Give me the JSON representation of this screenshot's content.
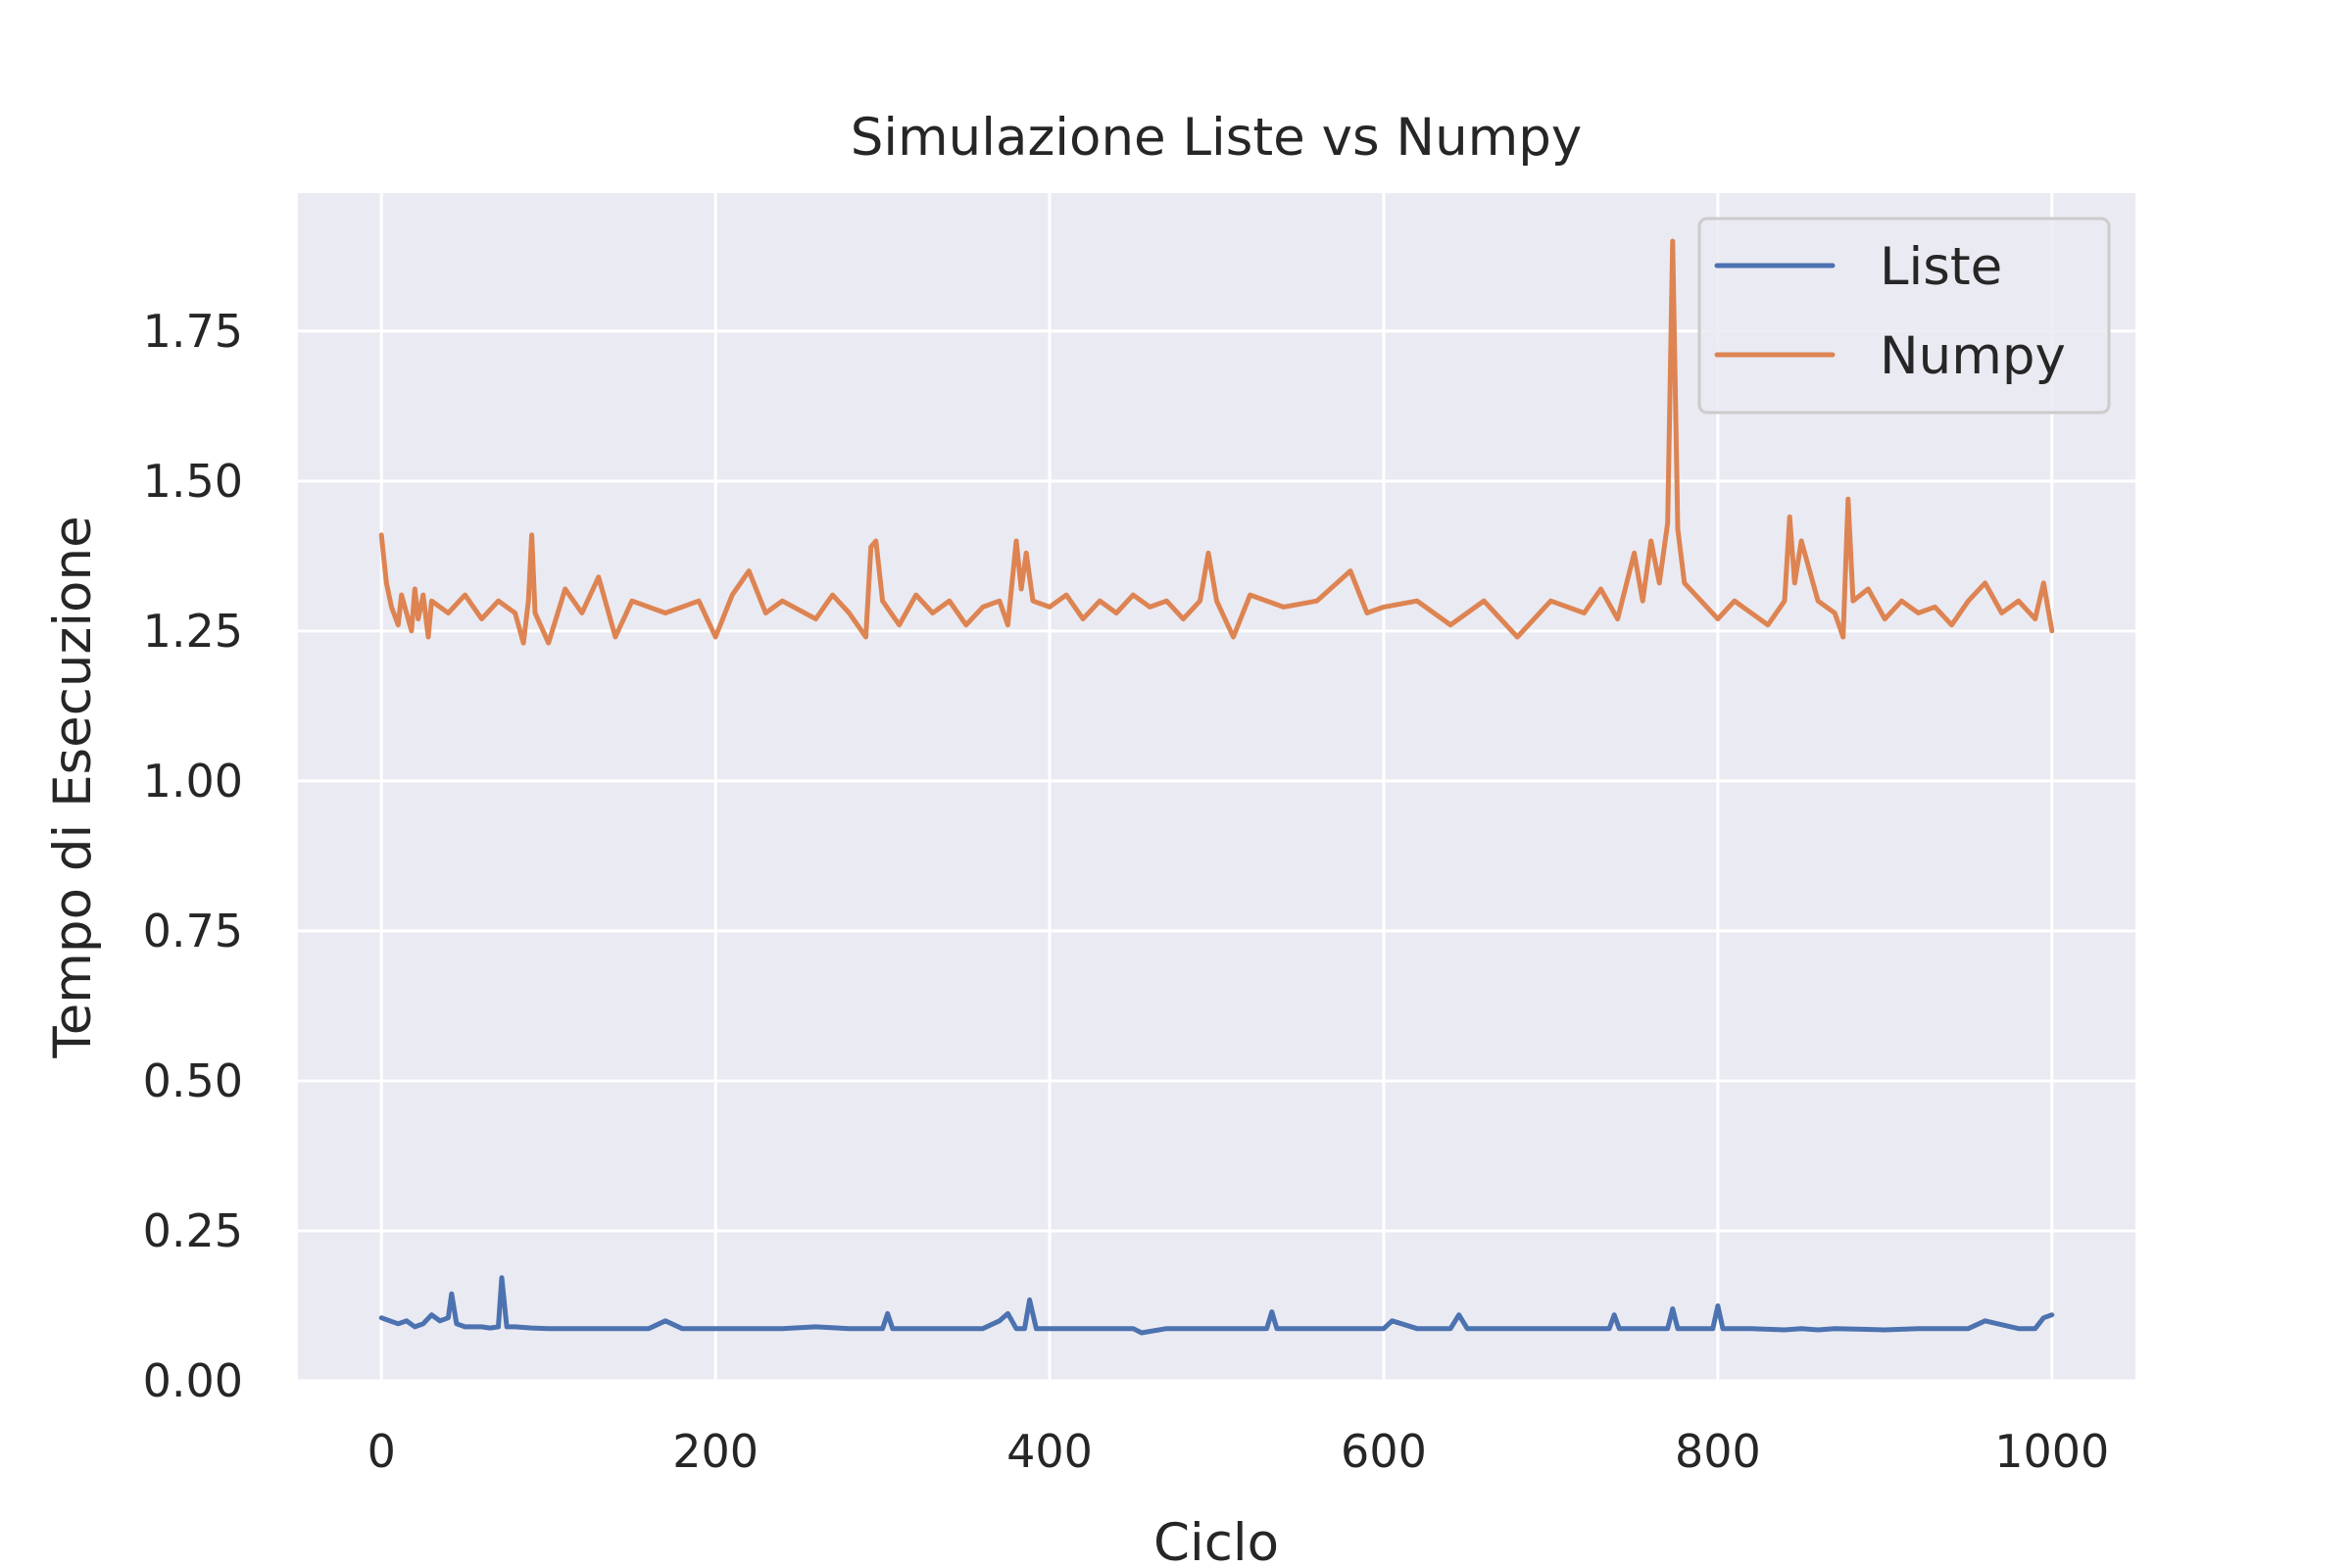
{
  "chart_data": {
    "type": "line",
    "title": "Simulazione Liste vs Numpy",
    "xlabel": "Ciclo",
    "ylabel": "Tempo di Esecuzione",
    "xlim": [
      -50,
      1050
    ],
    "ylim": [
      0,
      1.98
    ],
    "xticks": [
      0,
      200,
      400,
      600,
      800,
      1000
    ],
    "xtick_labels": [
      "0",
      "200",
      "400",
      "600",
      "800",
      "1000"
    ],
    "yticks": [
      0,
      0.25,
      0.5,
      0.75,
      1.0,
      1.25,
      1.5,
      1.75
    ],
    "ytick_labels": [
      "0.00",
      "0.25",
      "0.50",
      "0.75",
      "1.00",
      "1.25",
      "1.50",
      "1.75"
    ],
    "grid": true,
    "legend": "top-right",
    "colors": {
      "plot_bg": "#eaeaf2",
      "grid": "#ffffff",
      "Liste": "#4c72b0",
      "Numpy": "#dd8452"
    },
    "series": [
      {
        "name": "Liste",
        "x": [
          0,
          5,
          10,
          15,
          20,
          25,
          30,
          35,
          40,
          42,
          45,
          50,
          55,
          60,
          65,
          70,
          72,
          75,
          80,
          90,
          100,
          120,
          140,
          160,
          170,
          180,
          200,
          220,
          240,
          260,
          280,
          300,
          303,
          306,
          320,
          340,
          360,
          370,
          375,
          380,
          385,
          388,
          392,
          400,
          410,
          430,
          450,
          455,
          470,
          500,
          520,
          530,
          533,
          536,
          560,
          580,
          600,
          605,
          620,
          640,
          645,
          650,
          680,
          700,
          720,
          735,
          738,
          741,
          760,
          770,
          773,
          776,
          790,
          797,
          800,
          803,
          820,
          840,
          850,
          860,
          870,
          900,
          920,
          950,
          960,
          980,
          990,
          995,
          1000
        ],
        "values": [
          0.105,
          0.1,
          0.095,
          0.1,
          0.09,
          0.095,
          0.11,
          0.1,
          0.105,
          0.145,
          0.095,
          0.09,
          0.09,
          0.09,
          0.088,
          0.09,
          0.172,
          0.09,
          0.09,
          0.088,
          0.087,
          0.087,
          0.087,
          0.087,
          0.1,
          0.087,
          0.087,
          0.087,
          0.087,
          0.09,
          0.087,
          0.087,
          0.112,
          0.087,
          0.087,
          0.087,
          0.087,
          0.1,
          0.112,
          0.087,
          0.087,
          0.135,
          0.087,
          0.087,
          0.087,
          0.087,
          0.087,
          0.08,
          0.087,
          0.087,
          0.087,
          0.087,
          0.115,
          0.087,
          0.087,
          0.087,
          0.087,
          0.1,
          0.087,
          0.087,
          0.11,
          0.087,
          0.087,
          0.087,
          0.087,
          0.087,
          0.11,
          0.087,
          0.087,
          0.087,
          0.12,
          0.087,
          0.087,
          0.087,
          0.125,
          0.087,
          0.087,
          0.085,
          0.087,
          0.085,
          0.087,
          0.085,
          0.087,
          0.087,
          0.1,
          0.087,
          0.087,
          0.105,
          0.11
        ]
      },
      {
        "name": "Numpy",
        "x": [
          0,
          3,
          6,
          10,
          12,
          15,
          18,
          20,
          22,
          25,
          28,
          30,
          40,
          50,
          60,
          70,
          80,
          85,
          88,
          90,
          92,
          100,
          110,
          120,
          130,
          140,
          150,
          170,
          190,
          200,
          210,
          220,
          230,
          240,
          260,
          270,
          280,
          290,
          293,
          296,
          300,
          310,
          320,
          330,
          340,
          350,
          360,
          370,
          375,
          380,
          383,
          386,
          390,
          400,
          410,
          420,
          430,
          440,
          450,
          460,
          470,
          480,
          490,
          495,
          500,
          510,
          520,
          540,
          560,
          580,
          590,
          600,
          620,
          640,
          660,
          680,
          700,
          720,
          730,
          740,
          750,
          755,
          760,
          765,
          770,
          773,
          776,
          780,
          790,
          800,
          810,
          820,
          830,
          840,
          843,
          846,
          850,
          860,
          870,
          875,
          878,
          881,
          890,
          900,
          910,
          920,
          930,
          940,
          950,
          960,
          970,
          980,
          990,
          995,
          1000
        ],
        "values": [
          1.41,
          1.33,
          1.29,
          1.26,
          1.31,
          1.28,
          1.25,
          1.32,
          1.27,
          1.31,
          1.24,
          1.3,
          1.28,
          1.31,
          1.27,
          1.3,
          1.28,
          1.23,
          1.3,
          1.41,
          1.28,
          1.23,
          1.32,
          1.28,
          1.34,
          1.24,
          1.3,
          1.28,
          1.3,
          1.24,
          1.31,
          1.35,
          1.28,
          1.3,
          1.27,
          1.31,
          1.28,
          1.24,
          1.39,
          1.4,
          1.3,
          1.26,
          1.31,
          1.28,
          1.3,
          1.26,
          1.29,
          1.3,
          1.26,
          1.4,
          1.32,
          1.38,
          1.3,
          1.29,
          1.31,
          1.27,
          1.3,
          1.28,
          1.31,
          1.29,
          1.3,
          1.27,
          1.3,
          1.38,
          1.3,
          1.24,
          1.31,
          1.29,
          1.3,
          1.35,
          1.28,
          1.29,
          1.3,
          1.26,
          1.3,
          1.24,
          1.3,
          1.28,
          1.32,
          1.27,
          1.38,
          1.3,
          1.4,
          1.33,
          1.43,
          1.9,
          1.42,
          1.33,
          1.3,
          1.27,
          1.3,
          1.28,
          1.26,
          1.3,
          1.44,
          1.33,
          1.4,
          1.3,
          1.28,
          1.24,
          1.47,
          1.3,
          1.32,
          1.27,
          1.3,
          1.28,
          1.29,
          1.26,
          1.3,
          1.33,
          1.28,
          1.3,
          1.27,
          1.33,
          1.25
        ]
      }
    ]
  }
}
